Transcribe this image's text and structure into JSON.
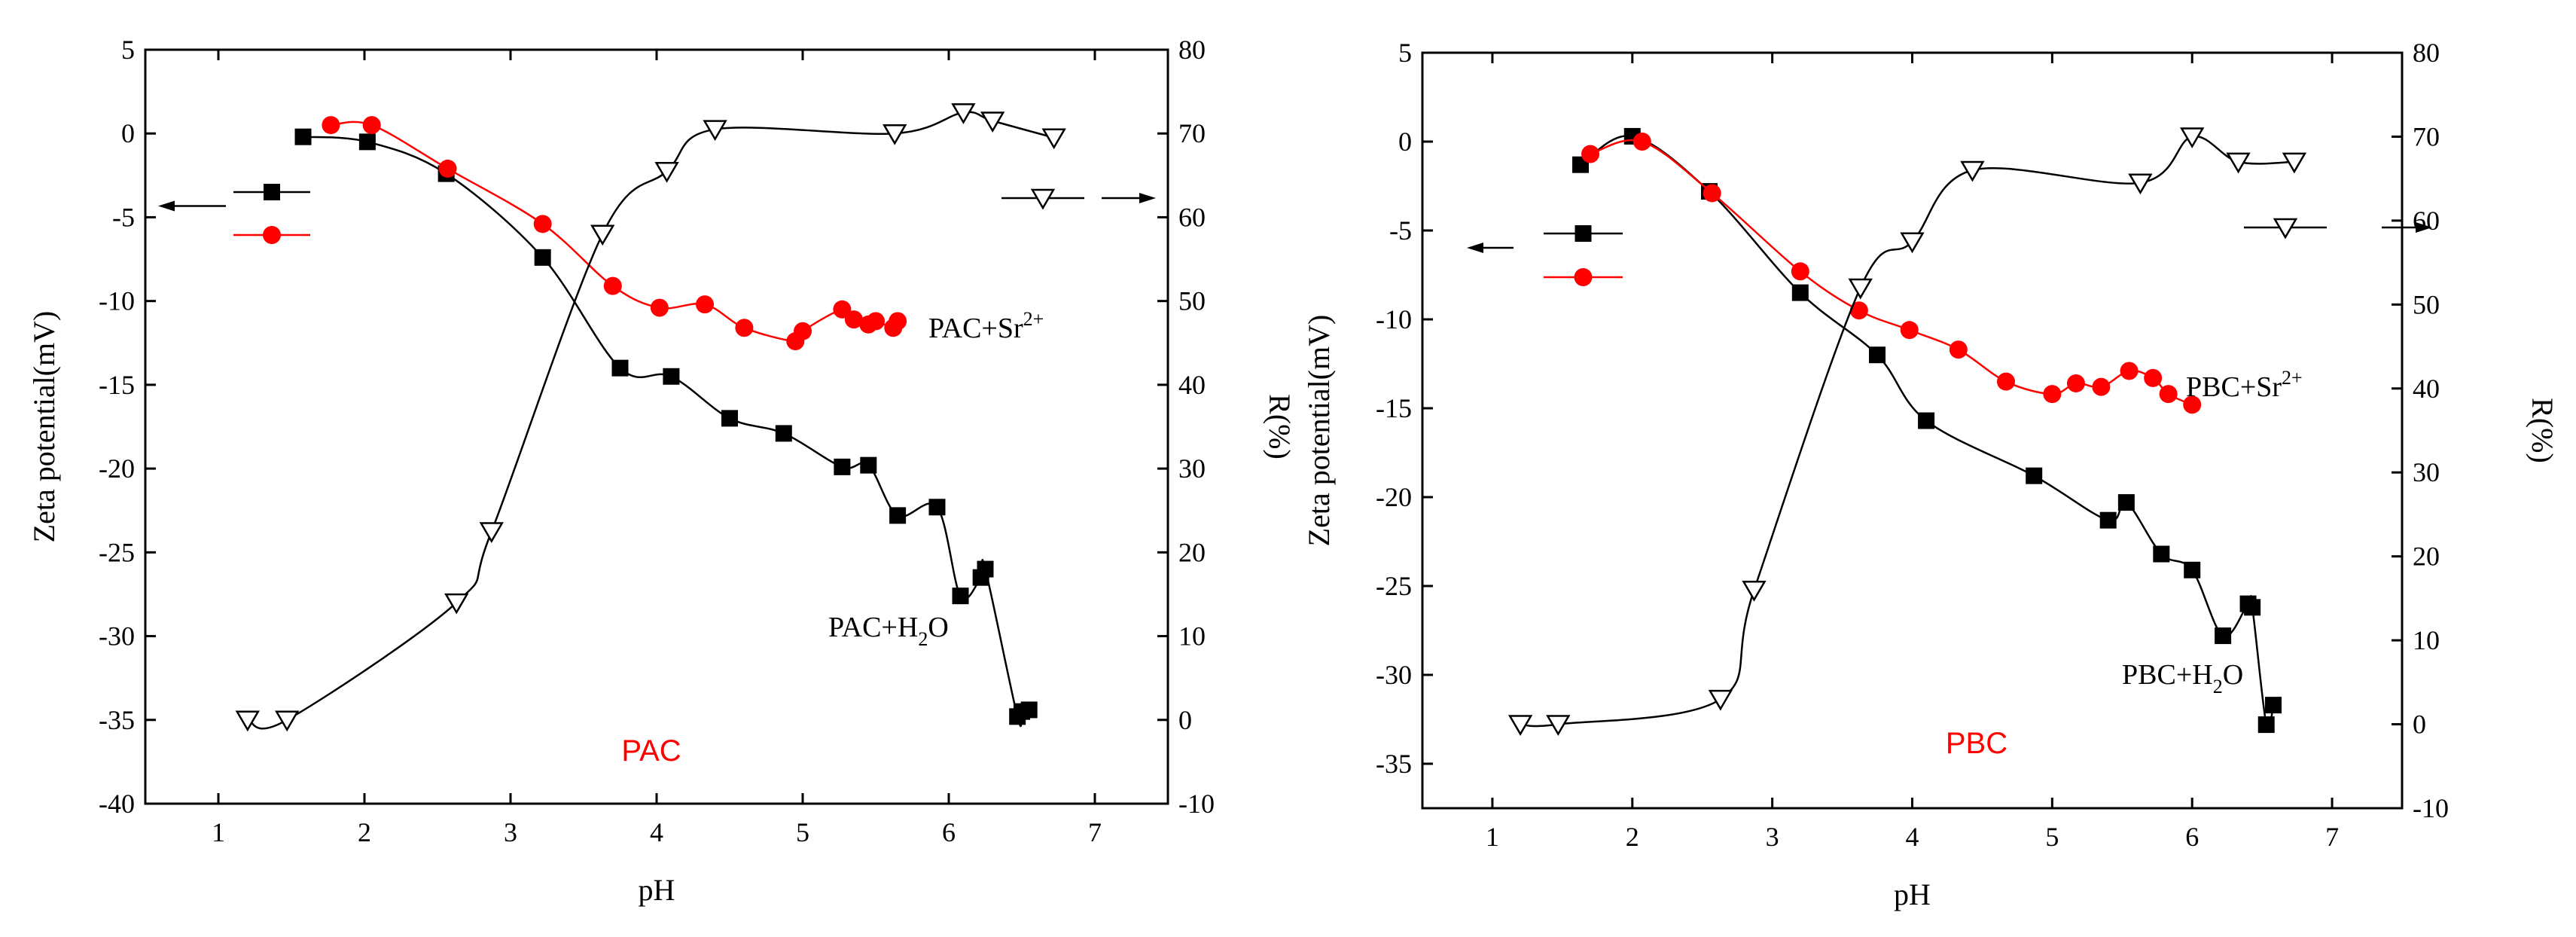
{
  "colors": {
    "axis": "#000000",
    "red_series": "#ff0000",
    "black_series": "#000000",
    "background": "#ffffff"
  },
  "chart_data": [
    {
      "type": "scatter",
      "panel_label": "PAC",
      "xlabel": "pH",
      "ylabel_left": "Zeta potential(mV)",
      "ylabel_right": "R(%)",
      "xlim": [
        0.5,
        7.5
      ],
      "ylim_left": [
        -40,
        5
      ],
      "ylim_right": [
        -10,
        80
      ],
      "x_ticks": [
        "1",
        "2",
        "3",
        "4",
        "5",
        "6",
        "7"
      ],
      "y_left_ticks": [
        "-40",
        "-35",
        "-30",
        "-25",
        "-20",
        "-15",
        "-10",
        "-5",
        "0",
        "5"
      ],
      "y_right_ticks": [
        "-10",
        "0",
        "10",
        "20",
        "30",
        "40",
        "50",
        "60",
        "70",
        "80"
      ],
      "series": [
        {
          "name": "PAC+H2O",
          "label_main": "PAC+H",
          "label_sub": "2",
          "label_tail": "O",
          "marker": "square",
          "color": "#000000",
          "axis": "left",
          "x": [
            1.58,
            2.02,
            2.56,
            3.22,
            3.75,
            4.1,
            4.5,
            4.87,
            5.27,
            5.45,
            5.65,
            5.92,
            6.08,
            6.22,
            6.25,
            6.47,
            6.5,
            6.55
          ],
          "y": [
            -0.2,
            -0.5,
            -2.4,
            -7.4,
            -14,
            -14.5,
            -17,
            -17.9,
            -19.9,
            -19.8,
            -22.8,
            -22.3,
            -27.6,
            -26.5,
            -26,
            -34.8,
            -34.5,
            -34.4
          ]
        },
        {
          "name": "PAC+Sr2+",
          "label_main": "PAC+Sr",
          "label_sup": "2+",
          "marker": "circle",
          "color": "#ff0000",
          "axis": "left",
          "x": [
            1.77,
            2.05,
            2.57,
            3.22,
            3.7,
            4.02,
            4.33,
            4.6,
            4.95,
            5.0,
            5.27,
            5.35,
            5.45,
            5.5,
            5.62,
            5.65
          ],
          "y": [
            0.5,
            0.5,
            -2.1,
            -5.4,
            -9.1,
            -10.4,
            -10.2,
            -11.6,
            -12.4,
            -11.8,
            -10.5,
            -11.1,
            -11.4,
            -11.2,
            -11.6,
            -11.2
          ]
        },
        {
          "name": "R",
          "marker": "triangle-down",
          "color": "#000000",
          "axis": "right",
          "x": [
            1.2,
            1.47,
            2.63,
            2.87,
            3.63,
            4.07,
            4.4,
            5.63,
            6.1,
            6.3,
            6.72
          ],
          "y": [
            0,
            0,
            14,
            22.5,
            58,
            65.5,
            70.5,
            70,
            72.5,
            71.5,
            69.5
          ]
        }
      ],
      "legend": [
        {
          "series": "PAC+H2O",
          "position": "left"
        },
        {
          "series": "PAC+Sr2+",
          "position": "left"
        },
        {
          "series": "R",
          "position": "right"
        }
      ]
    },
    {
      "type": "scatter",
      "panel_label": "PBC",
      "xlabel": "pH",
      "ylabel_left": "Zeta potential(mV)",
      "ylabel_right": "R(%)",
      "xlim": [
        0.5,
        7.5
      ],
      "ylim_left": [
        -37.5,
        5
      ],
      "ylim_right": [
        -10,
        80
      ],
      "x_ticks": [
        "1",
        "2",
        "3",
        "4",
        "5",
        "6",
        "7"
      ],
      "y_left_ticks": [
        "-35",
        "-30",
        "-25",
        "-20",
        "-15",
        "-10",
        "-5",
        "0",
        "5"
      ],
      "y_right_ticks": [
        "-10",
        "0",
        "10",
        "20",
        "30",
        "40",
        "50",
        "60",
        "70",
        "80"
      ],
      "series": [
        {
          "name": "PBC+H2O",
          "label_main": "PBC+H",
          "label_sub": "2",
          "label_tail": "O",
          "marker": "square",
          "color": "#000000",
          "axis": "left",
          "x": [
            1.63,
            2.0,
            2.55,
            3.2,
            3.75,
            4.1,
            4.87,
            5.4,
            5.53,
            5.78,
            6.0,
            6.22,
            6.4,
            6.43,
            6.53,
            6.58
          ],
          "y": [
            -1.3,
            0.3,
            -2.8,
            -8.5,
            -12,
            -15.7,
            -18.8,
            -21.3,
            -20.3,
            -23.2,
            -24.1,
            -27.8,
            -26,
            -26.2,
            -32.8,
            -31.7
          ]
        },
        {
          "name": "PBC+Sr2+",
          "label_main": "PBC+Sr",
          "label_sup": "2+",
          "marker": "circle",
          "color": "#ff0000",
          "axis": "left",
          "x": [
            1.7,
            2.07,
            2.57,
            3.2,
            3.62,
            3.98,
            4.33,
            4.67,
            5.0,
            5.17,
            5.35,
            5.55,
            5.72,
            5.83,
            6.0
          ],
          "y": [
            -0.7,
            0,
            -2.9,
            -7.3,
            -9.5,
            -10.6,
            -11.7,
            -13.5,
            -14.2,
            -13.6,
            -13.8,
            -12.9,
            -13.3,
            -14.2,
            -14.8
          ]
        },
        {
          "name": "R",
          "marker": "triangle-down",
          "color": "#000000",
          "axis": "right",
          "x": [
            1.2,
            1.47,
            2.63,
            2.87,
            3.63,
            4.0,
            4.43,
            5.63,
            6.0,
            6.33,
            6.73
          ],
          "y": [
            0,
            0,
            3,
            16,
            52,
            57.5,
            66,
            64.5,
            70,
            67,
            67
          ]
        }
      ],
      "legend": [
        {
          "series": "PBC+H2O",
          "position": "left"
        },
        {
          "series": "PBC+Sr2+",
          "position": "left"
        },
        {
          "series": "R",
          "position": "right"
        }
      ]
    }
  ]
}
